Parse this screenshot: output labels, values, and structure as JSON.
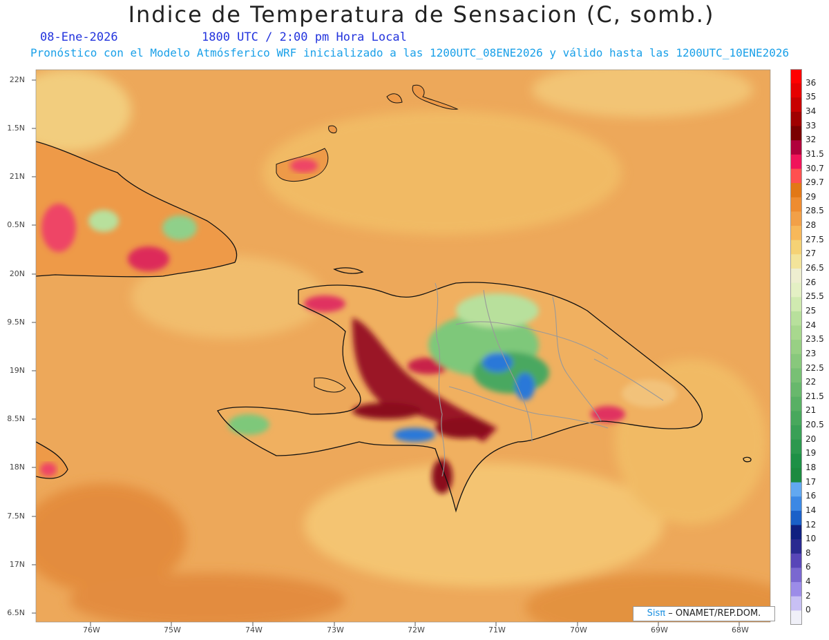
{
  "header": {
    "title": "Indice de Temperatura de Sensacion (C, somb.)",
    "date": "08-Ene-2026",
    "time": "1800 UTC / 2:00 pm Hora Local",
    "model_info": "Pronóstico con el Modelo Atmósferico WRF inicializado a las 1200UTC_08ENE2026 y válido hasta las  1200UTC_10ENE2026"
  },
  "map": {
    "lat_ticks": [
      "22N",
      "1.5N",
      "21N",
      "0.5N",
      "20N",
      "9.5N",
      "19N",
      "8.5N",
      "18N",
      "7.5N",
      "17N",
      "6.5N"
    ],
    "lon_ticks": [
      "76W",
      "75W",
      "74W",
      "73W",
      "72W",
      "71W",
      "70W",
      "69W",
      "68W"
    ],
    "background_color": "#eda85a",
    "land_colors": {
      "hot": "#8a0f1e",
      "warm": "#e84060",
      "mild": "#f2c27a",
      "green": "#7ec87a",
      "cool": "#2a78d8"
    }
  },
  "colorbar": {
    "labels": [
      "36",
      "35",
      "34",
      "33",
      "32",
      "31.5",
      "30.7",
      "29.7",
      "29",
      "28.5",
      "28",
      "27.5",
      "27",
      "26.5",
      "26",
      "25.5",
      "25",
      "24",
      "23.5",
      "23",
      "22.5",
      "22",
      "21.5",
      "21",
      "20.5",
      "20",
      "19",
      "18",
      "17",
      "16",
      "14",
      "12",
      "10",
      "8",
      "6",
      "4",
      "2",
      "0"
    ],
    "colors": [
      "#ff0000",
      "#e60000",
      "#c80000",
      "#a00000",
      "#7a0000",
      "#b0003c",
      "#f0145a",
      "#ff5050",
      "#e27816",
      "#ee8c30",
      "#f2a048",
      "#f7b85a",
      "#f5d275",
      "#f3e49a",
      "#eeeed0",
      "#e4f0c4",
      "#d0eab0",
      "#b8e09c",
      "#a8d88e",
      "#98d084",
      "#88c87c",
      "#78c074",
      "#68b86c",
      "#58b064",
      "#48a85c",
      "#3aa056",
      "#2c984e",
      "#1e9046",
      "#1c8a40",
      "#62a8f0",
      "#3c88e4",
      "#1a60c8",
      "#102080",
      "#2a2a90",
      "#5846b8",
      "#7a68d0",
      "#9c8ce8",
      "#c8c0f4",
      "#f0f0f8"
    ]
  },
  "credit": {
    "brand": "Sisπ",
    "text": "– ONAMET/REP.DOM."
  }
}
